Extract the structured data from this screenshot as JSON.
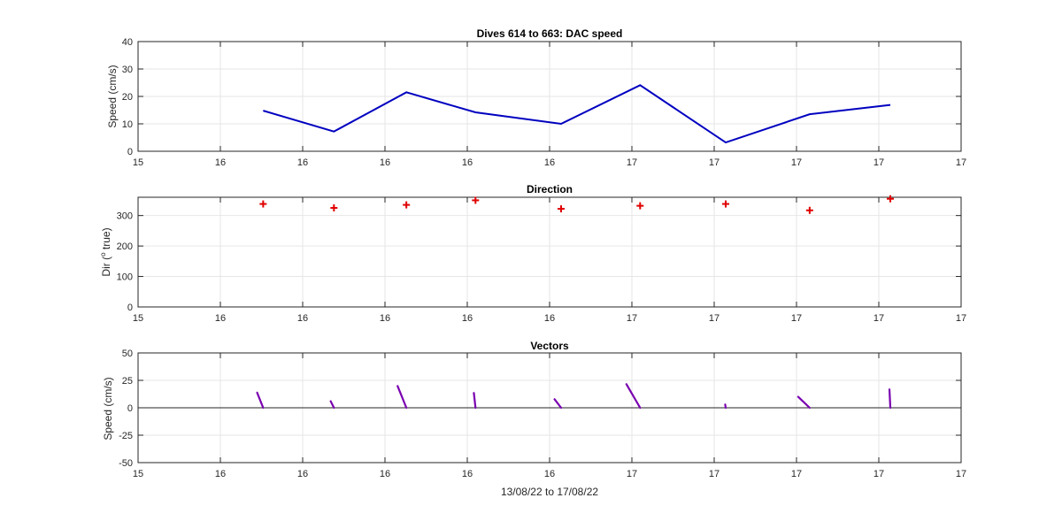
{
  "chart_data": [
    {
      "type": "line",
      "title": "Dives 614 to 663: DAC speed",
      "ylabel": "Speed (cm/s)",
      "xlabel": "",
      "ylim": [
        0,
        40
      ],
      "yticks": [
        "0",
        "10",
        "20",
        "30",
        "40"
      ],
      "xtick_labels": [
        "15",
        "16",
        "16",
        "16",
        "16",
        "16",
        "17",
        "17",
        "17",
        "17"
      ],
      "grid": true,
      "color": "#0000c0",
      "series": [
        {
          "x": [
            15.76,
            16.19,
            16.63,
            17.05,
            17.57,
            18.05,
            18.57,
            19.08,
            19.57
          ],
          "values": [
            14.8,
            7.2,
            21.5,
            14.2,
            10.0,
            24.1,
            3.2,
            13.5,
            16.9
          ]
        }
      ]
    },
    {
      "type": "scatter",
      "title": "Direction",
      "ylabel": "Dir (o true)",
      "ylabel_main": "Dir (",
      "ylabel_sup": "o",
      "ylabel_tail": " true)",
      "xlabel": "",
      "ylim": [
        0,
        360
      ],
      "yticks": [
        "0",
        "100",
        "200",
        "300"
      ],
      "xtick_labels": [
        "15",
        "16",
        "16",
        "16",
        "16",
        "16",
        "17",
        "17",
        "17",
        "17"
      ],
      "grid": true,
      "color": "#e00000",
      "marker": "plus",
      "series": [
        {
          "x": [
            15.76,
            16.19,
            16.63,
            17.05,
            17.57,
            18.05,
            18.57,
            19.08,
            19.57
          ],
          "values": [
            338,
            325,
            335,
            350,
            322,
            332,
            338,
            317,
            355
          ]
        }
      ]
    },
    {
      "type": "vector",
      "title": "Vectors",
      "ylabel": "Speed (cm/s)",
      "xlabel": "13/08/22 to 17/08/22",
      "ylim": [
        -50,
        50
      ],
      "yticks": [
        "-50",
        "-25",
        "0",
        "25",
        "50"
      ],
      "xtick_labels": [
        "15",
        "16",
        "16",
        "16",
        "16",
        "16",
        "17",
        "17",
        "17",
        "17"
      ],
      "grid": true,
      "color": "#7a00b0",
      "series": [
        {
          "x": [
            15.76,
            16.19,
            16.63,
            17.05,
            17.57,
            18.05,
            18.57,
            19.08,
            19.57
          ],
          "u": [
            -5.5,
            -3.0,
            -8.0,
            -1.5,
            -6.0,
            -12.5,
            -0.5,
            -10.5,
            -0.8
          ],
          "v": [
            13.8,
            6.0,
            19.8,
            13.5,
            7.8,
            21.5,
            3.0,
            10.0,
            16.8
          ]
        }
      ]
    }
  ]
}
